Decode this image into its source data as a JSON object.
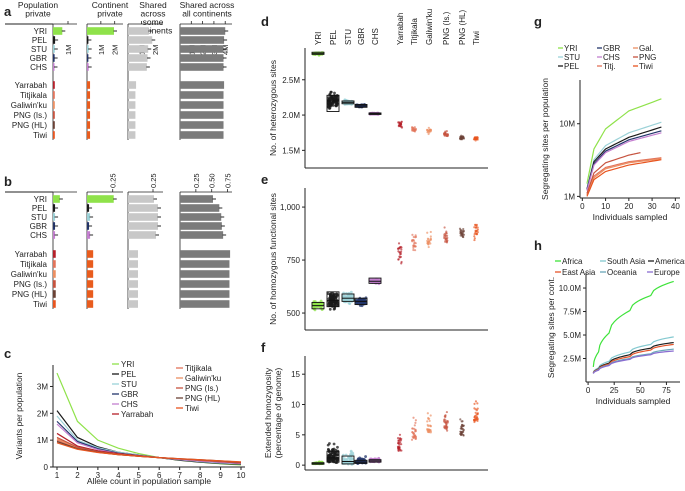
{
  "colors": {
    "YRI": "#8fe24a",
    "PEL": "#1a1a1a",
    "STU": "#9cd2d8",
    "GBR": "#23356b",
    "CHS": "#c47fd0",
    "Yarrabah": "#b5202a",
    "Titjikala": "#e2745b",
    "Galiwinku": "#ec8f62",
    "PNGIs": "#c6533f",
    "PNGHL": "#6b4135",
    "Tiwi": "#e8541f",
    "aus_bar": "#e85c1e",
    "grey_light": "#c8c8c8",
    "grey_dark": "#7b7b7b",
    "Africa": "#3ee33a",
    "SouthAsia": "#84c9d0",
    "Americas": "#1f1f1f",
    "EastAsia": "#e6542a",
    "Oceania": "#6aa6b8",
    "Europe": "#8a6cd1"
  },
  "panel_labels": {
    "a": "a",
    "b": "b",
    "c": "c",
    "d": "d",
    "e": "e",
    "f": "f",
    "g": "g",
    "h": "h"
  },
  "chart_data": [
    {
      "panel": "a",
      "type": "bar",
      "column_titles": [
        "Population private",
        "Continent private",
        "Shared across some continents",
        "Shared across all continents"
      ],
      "column_titles_lines": [
        [
          "Population",
          "private"
        ],
        [
          "Continent",
          "private"
        ],
        [
          "Shared",
          "across",
          "some",
          "continents"
        ],
        [
          "Shared across",
          "all continents"
        ]
      ],
      "tick_labels": [
        [
          "1M"
        ],
        [
          "1M",
          "2M"
        ],
        [
          "1M",
          "2M"
        ],
        [
          "1M",
          "2M",
          "3M",
          "4M"
        ]
      ],
      "axis_max": [
        1.6,
        2.6,
        2.6,
        4.6
      ],
      "groups": [
        [
          "YRI",
          "PEL",
          "STU",
          "GBR",
          "CHS"
        ],
        [
          "Yarrabah",
          "Titjikala",
          "Galiwin'ku",
          "PNG (Is.)",
          "PNG (HL)",
          "Tiwi"
        ]
      ],
      "values": {
        "YRI": [
          0.62,
          1.95,
          1.55,
          4.0
        ],
        "PEL": [
          0.14,
          0.1,
          1.8,
          3.9
        ],
        "STU": [
          0.12,
          0.12,
          1.5,
          3.85
        ],
        "GBR": [
          0.11,
          0.1,
          1.45,
          3.85
        ],
        "CHS": [
          0.1,
          0.12,
          1.4,
          3.85
        ],
        "Yarrabah": [
          0.12,
          0.22,
          0.6,
          3.9
        ],
        "Titjikala": [
          0.12,
          0.22,
          0.55,
          3.85
        ],
        "Galiwin'ku": [
          0.12,
          0.22,
          0.55,
          3.85
        ],
        "PNG (Is.)": [
          0.12,
          0.22,
          0.55,
          3.85
        ],
        "PNG (HL)": [
          0.12,
          0.22,
          0.55,
          3.85
        ],
        "Tiwi": [
          0.12,
          0.22,
          0.55,
          3.85
        ]
      }
    },
    {
      "panel": "b",
      "type": "bar",
      "tick_labels": [
        [],
        [
          "0.25"
        ],
        [
          "0.25"
        ],
        [
          "0.25",
          "0.50",
          "0.75"
        ]
      ],
      "tick_values": [
        [],
        [
          0.25
        ],
        [
          0.25
        ],
        [
          0.25,
          0.5,
          0.75
        ]
      ],
      "axis_max": [
        0.35,
        0.35,
        0.35,
        0.82
      ],
      "groups": [
        [
          "YRI",
          "PEL",
          "STU",
          "GBR",
          "CHS"
        ],
        [
          "Yarrabah",
          "Titjikala",
          "Galiwin'ku",
          "PNG (Is.)",
          "PNG (HL)",
          "Tiwi"
        ]
      ],
      "values": {
        "YRI": [
          0.1,
          0.26,
          0.26,
          0.52
        ],
        "PEL": [
          0.03,
          0.02,
          0.3,
          0.62
        ],
        "STU": [
          0.03,
          0.03,
          0.3,
          0.65
        ],
        "GBR": [
          0.03,
          0.02,
          0.3,
          0.66
        ],
        "CHS": [
          0.03,
          0.03,
          0.28,
          0.68
        ],
        "Yarrabah": [
          0.04,
          0.06,
          0.1,
          0.79
        ],
        "Titjikala": [
          0.04,
          0.06,
          0.1,
          0.78
        ],
        "Galiwin'ku": [
          0.04,
          0.06,
          0.1,
          0.78
        ],
        "PNG (Is.)": [
          0.04,
          0.06,
          0.1,
          0.78
        ],
        "PNG (HL)": [
          0.04,
          0.06,
          0.1,
          0.78
        ],
        "Tiwi": [
          0.04,
          0.06,
          0.1,
          0.78
        ]
      }
    },
    {
      "panel": "c",
      "type": "line",
      "xlabel": "Allele count in population sample",
      "ylabel": "Variants per population",
      "x": [
        1,
        2,
        3,
        4,
        5,
        6,
        7,
        8,
        9,
        10
      ],
      "xticks": [
        1,
        2,
        3,
        4,
        5,
        6,
        7,
        8,
        9,
        10
      ],
      "yticks": [
        0,
        1,
        2,
        3
      ],
      "ytick_labels": [
        "0",
        "1M",
        "2M",
        "3M"
      ],
      "ylim": [
        0,
        3.8
      ],
      "legend_left": [
        "YRI",
        "PEL",
        "STU",
        "GBR",
        "CHS",
        "Yarrabah"
      ],
      "legend_right": [
        "Titjikala",
        "Galiwin'ku",
        "PNG (Is.)",
        "PNG (HL)",
        "Tiwi"
      ],
      "series": [
        {
          "name": "YRI",
          "values": [
            3.5,
            1.7,
            1.0,
            0.7,
            0.5,
            0.35,
            0.25,
            0.18,
            0.12,
            0.08
          ]
        },
        {
          "name": "PEL",
          "values": [
            2.1,
            1.1,
            0.75,
            0.55,
            0.45,
            0.35,
            0.25,
            0.18,
            0.13,
            0.1
          ]
        },
        {
          "name": "STU",
          "values": [
            1.9,
            1.0,
            0.72,
            0.55,
            0.45,
            0.35,
            0.27,
            0.2,
            0.15,
            0.12
          ]
        },
        {
          "name": "GBR",
          "values": [
            1.7,
            0.95,
            0.68,
            0.52,
            0.43,
            0.35,
            0.28,
            0.22,
            0.17,
            0.13
          ]
        },
        {
          "name": "CHS",
          "values": [
            1.6,
            0.9,
            0.65,
            0.5,
            0.42,
            0.35,
            0.28,
            0.22,
            0.17,
            0.13
          ]
        },
        {
          "name": "Yarrabah",
          "values": [
            1.25,
            0.78,
            0.6,
            0.5,
            0.42,
            0.35,
            0.3,
            0.25,
            0.2,
            0.15
          ]
        },
        {
          "name": "Titjikala",
          "values": [
            1.0,
            0.7,
            0.55,
            0.46,
            0.4,
            0.35,
            0.3,
            0.26,
            0.22,
            0.17
          ]
        },
        {
          "name": "Galiwin'ku",
          "values": [
            1.05,
            0.72,
            0.56,
            0.47,
            0.4,
            0.35,
            0.3,
            0.25,
            0.21,
            0.16
          ]
        },
        {
          "name": "PNG (Is.)",
          "values": [
            1.1,
            0.74,
            0.57,
            0.47,
            0.41,
            0.35,
            0.3,
            0.25,
            0.2,
            0.16
          ]
        },
        {
          "name": "PNG (HL)",
          "values": [
            0.95,
            0.68,
            0.55,
            0.46,
            0.4,
            0.35,
            0.31,
            0.27,
            0.23,
            0.18
          ]
        },
        {
          "name": "Tiwi",
          "values": [
            0.9,
            0.66,
            0.54,
            0.46,
            0.4,
            0.35,
            0.31,
            0.27,
            0.23,
            0.19
          ]
        }
      ]
    },
    {
      "panel": "d",
      "type": "scatter",
      "ylabel": "No. of heterozygous sites",
      "yticks": [
        1.5,
        2.0,
        2.5
      ],
      "ytick_labels": [
        "1.5M",
        "2.0M",
        "2.5M"
      ],
      "ylim": [
        1.25,
        2.95
      ],
      "categories": [
        "YRI",
        "PEL",
        "STU",
        "GBR",
        "CHS",
        "Yarrabah",
        "Titjikala",
        "Galiwin'ku",
        "PNG (Is.)",
        "PNG (HL)",
        "Tiwi"
      ],
      "medians": [
        2.87,
        2.2,
        2.18,
        2.13,
        2.02,
        1.86,
        1.8,
        1.78,
        1.73,
        1.68,
        1.67
      ],
      "boxes": [
        [
          2.86,
          2.89
        ],
        [
          2.05,
          2.28
        ],
        [
          2.16,
          2.2
        ],
        [
          2.11,
          2.15
        ],
        [
          2.01,
          2.03
        ],
        null,
        null,
        null,
        null,
        null,
        null
      ]
    },
    {
      "panel": "e",
      "type": "scatter",
      "ylabel": "No. of homozygous functional sites",
      "yticks": [
        500,
        750,
        1000
      ],
      "ytick_labels": [
        "500",
        "750",
        "1,000"
      ],
      "ylim": [
        420,
        1090
      ],
      "categories": [
        "YRI",
        "PEL",
        "STU",
        "GBR",
        "CHS",
        "Yarrabah",
        "Titjikala",
        "Galiwin'ku",
        "PNG (Is.)",
        "PNG (HL)",
        "Tiwi"
      ],
      "medians": [
        535,
        560,
        570,
        555,
        650,
        790,
        830,
        840,
        860,
        880,
        890
      ],
      "boxes": [
        [
          520,
          550
        ],
        [
          530,
          600
        ],
        [
          555,
          590
        ],
        [
          540,
          570
        ],
        [
          640,
          665
        ],
        null,
        null,
        null,
        null,
        null,
        null
      ]
    },
    {
      "panel": "f",
      "type": "scatter",
      "ylabel": "Extended homozygosity (percentage of genome)",
      "ylabel_lines": [
        "Extended homozygosity",
        "(percentage of genome)"
      ],
      "yticks": [
        0,
        5,
        10,
        15
      ],
      "ytick_labels": [
        "0",
        "5",
        "10",
        "15"
      ],
      "ylim": [
        -0.8,
        18
      ],
      "categories": [
        "YRI",
        "PEL",
        "STU",
        "GBR",
        "CHS",
        "Yarrabah",
        "Titjikala",
        "Galiwin'ku",
        "PNG (Is.)",
        "PNG (HL)",
        "Tiwi"
      ],
      "medians": [
        0.3,
        1.2,
        0.6,
        0.5,
        0.7,
        3.0,
        5.0,
        6.0,
        6.5,
        5.5,
        8.0
      ],
      "boxes": [
        [
          0.2,
          0.4
        ],
        [
          0.5,
          2.3
        ],
        [
          0.2,
          1.5
        ],
        [
          0.3,
          0.8
        ],
        [
          0.5,
          0.9
        ],
        null,
        null,
        null,
        null,
        null,
        null
      ]
    },
    {
      "panel": "g",
      "type": "line",
      "xlabel": "Individuals sampled",
      "ylabel": "Segregating sites per population",
      "xticks": [
        0,
        10,
        20,
        30,
        40
      ],
      "xlim": [
        -1,
        42
      ],
      "yticks": [
        1,
        10
      ],
      "ytick_labels": [
        "1M",
        "10M"
      ],
      "ylim": [
        0.95,
        40
      ],
      "legend_left": [
        "YRI",
        "STU",
        "PEL"
      ],
      "legend_mid": [
        "GBR",
        "CHS",
        "Titj."
      ],
      "legend_right": [
        "Gal.",
        "PNG",
        "Tiwi"
      ],
      "series": [
        {
          "name": "YRI",
          "color": "#8fe24a",
          "x": [
            2,
            5,
            10,
            20,
            34
          ],
          "values": [
            1.5,
            4.5,
            8.5,
            15.0,
            22.0
          ]
        },
        {
          "name": "STU",
          "color": "#9cd2d8",
          "x": [
            2,
            5,
            10,
            20,
            34
          ],
          "values": [
            1.3,
            3.2,
            5.0,
            7.5,
            10.5
          ]
        },
        {
          "name": "PEL",
          "color": "#1a1a1a",
          "x": [
            2,
            5,
            10,
            20,
            34
          ],
          "values": [
            1.25,
            3.0,
            4.5,
            6.5,
            9.0
          ]
        },
        {
          "name": "GBR",
          "color": "#23356b",
          "x": [
            2,
            5,
            10,
            20,
            34
          ],
          "values": [
            1.25,
            2.8,
            4.2,
            6.0,
            8.0
          ]
        },
        {
          "name": "CHS",
          "color": "#c47fd0",
          "x": [
            2,
            5,
            10,
            20,
            34
          ],
          "values": [
            1.2,
            2.7,
            4.0,
            5.7,
            7.5
          ]
        },
        {
          "name": "Titj.",
          "color": "#e2745b",
          "x": [
            2,
            5,
            10,
            20,
            34
          ],
          "values": [
            1.05,
            1.9,
            2.5,
            3.0,
            3.4
          ]
        },
        {
          "name": "Gal.",
          "color": "#ec8f62",
          "x": [
            2,
            5,
            10,
            20,
            34
          ],
          "values": [
            1.05,
            1.8,
            2.4,
            2.9,
            3.3
          ]
        },
        {
          "name": "PNG",
          "color": "#c6533f",
          "x": [
            2,
            5,
            10,
            20,
            25
          ],
          "values": [
            1.1,
            2.1,
            2.9,
            3.7,
            4.0
          ]
        },
        {
          "name": "Tiwi",
          "color": "#e8541f",
          "x": [
            2,
            5,
            10,
            20,
            34
          ],
          "values": [
            1.0,
            1.7,
            2.2,
            2.7,
            3.2
          ]
        }
      ]
    },
    {
      "panel": "h",
      "type": "line",
      "xlabel": "Individuals sampled",
      "ylabel": "Segregating sites per cont.",
      "xticks": [
        0,
        25,
        50,
        75
      ],
      "xlim": [
        -2,
        88
      ],
      "yticks": [
        2.5,
        5,
        7.5,
        10
      ],
      "ytick_labels": [
        "2.5M",
        "5.0M",
        "7.5M",
        "10.0M"
      ],
      "ylim": [
        0,
        11.6
      ],
      "legend_row1": [
        "Africa",
        "South Asia",
        "Americas"
      ],
      "legend_row2": [
        "East Asia",
        "Oceania",
        "Europe"
      ],
      "series": [
        {
          "name": "Africa",
          "color": "#3ee33a",
          "x": [
            5,
            10,
            20,
            40,
            60,
            82
          ],
          "values": [
            1.6,
            3.2,
            5.2,
            7.6,
            9.2,
            10.7
          ]
        },
        {
          "name": "South Asia",
          "color": "#84c9d0",
          "x": [
            5,
            10,
            20,
            40,
            60,
            82
          ],
          "values": [
            1.0,
            1.5,
            2.2,
            3.2,
            4.0,
            4.8
          ]
        },
        {
          "name": "Americas",
          "color": "#1f1f1f",
          "x": [
            5,
            10,
            20,
            40,
            60,
            82
          ],
          "values": [
            0.95,
            1.4,
            2.0,
            2.9,
            3.6,
            4.2
          ]
        },
        {
          "name": "East Asia",
          "color": "#e6542a",
          "x": [
            5,
            10,
            20,
            40,
            60,
            82
          ],
          "values": [
            0.95,
            1.35,
            1.9,
            2.7,
            3.4,
            4.0
          ]
        },
        {
          "name": "Oceania",
          "color": "#6aa6b8",
          "x": [
            5,
            10,
            20,
            40,
            60,
            82
          ],
          "values": [
            0.9,
            1.3,
            1.8,
            2.5,
            3.0,
            3.5
          ]
        },
        {
          "name": "Europe",
          "color": "#8a6cd1",
          "x": [
            5,
            10,
            20,
            40,
            60,
            82
          ],
          "values": [
            0.9,
            1.25,
            1.75,
            2.4,
            2.9,
            3.3
          ]
        }
      ]
    }
  ]
}
